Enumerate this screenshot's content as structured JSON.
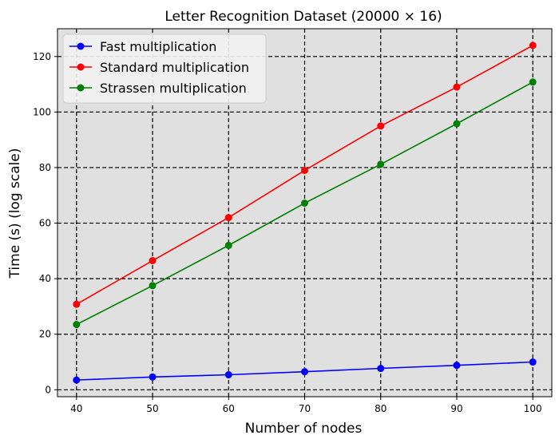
{
  "chart_data": {
    "type": "line",
    "title": "Letter Recognition Dataset (20000 × 16)",
    "xlabel": "Number of nodes",
    "ylabel": "Time (s) (log scale)",
    "x": [
      40,
      50,
      60,
      70,
      80,
      90,
      100
    ],
    "xlim": [
      37.5,
      102.5
    ],
    "ylim": [
      -2.5,
      130
    ],
    "x_ticks": [
      40,
      50,
      60,
      70,
      80,
      90,
      100
    ],
    "y_ticks": [
      0,
      20,
      40,
      60,
      80,
      100,
      120
    ],
    "grid": true,
    "legend_position": "top-left",
    "background_color": "#e0e0e0",
    "series": [
      {
        "name": "Fast multiplication",
        "color": "#0000ff",
        "values": [
          3.5,
          4.6,
          5.4,
          6.5,
          7.7,
          8.8,
          10.0
        ]
      },
      {
        "name": "Standard multiplication",
        "color": "#ff0000",
        "values": [
          30.8,
          46.5,
          62.0,
          79.0,
          95.0,
          109.0,
          124.0
        ]
      },
      {
        "name": "Strassen multiplication",
        "color": "#008000",
        "values": [
          23.5,
          37.5,
          52.0,
          67.2,
          81.2,
          95.8,
          110.8
        ]
      }
    ]
  }
}
